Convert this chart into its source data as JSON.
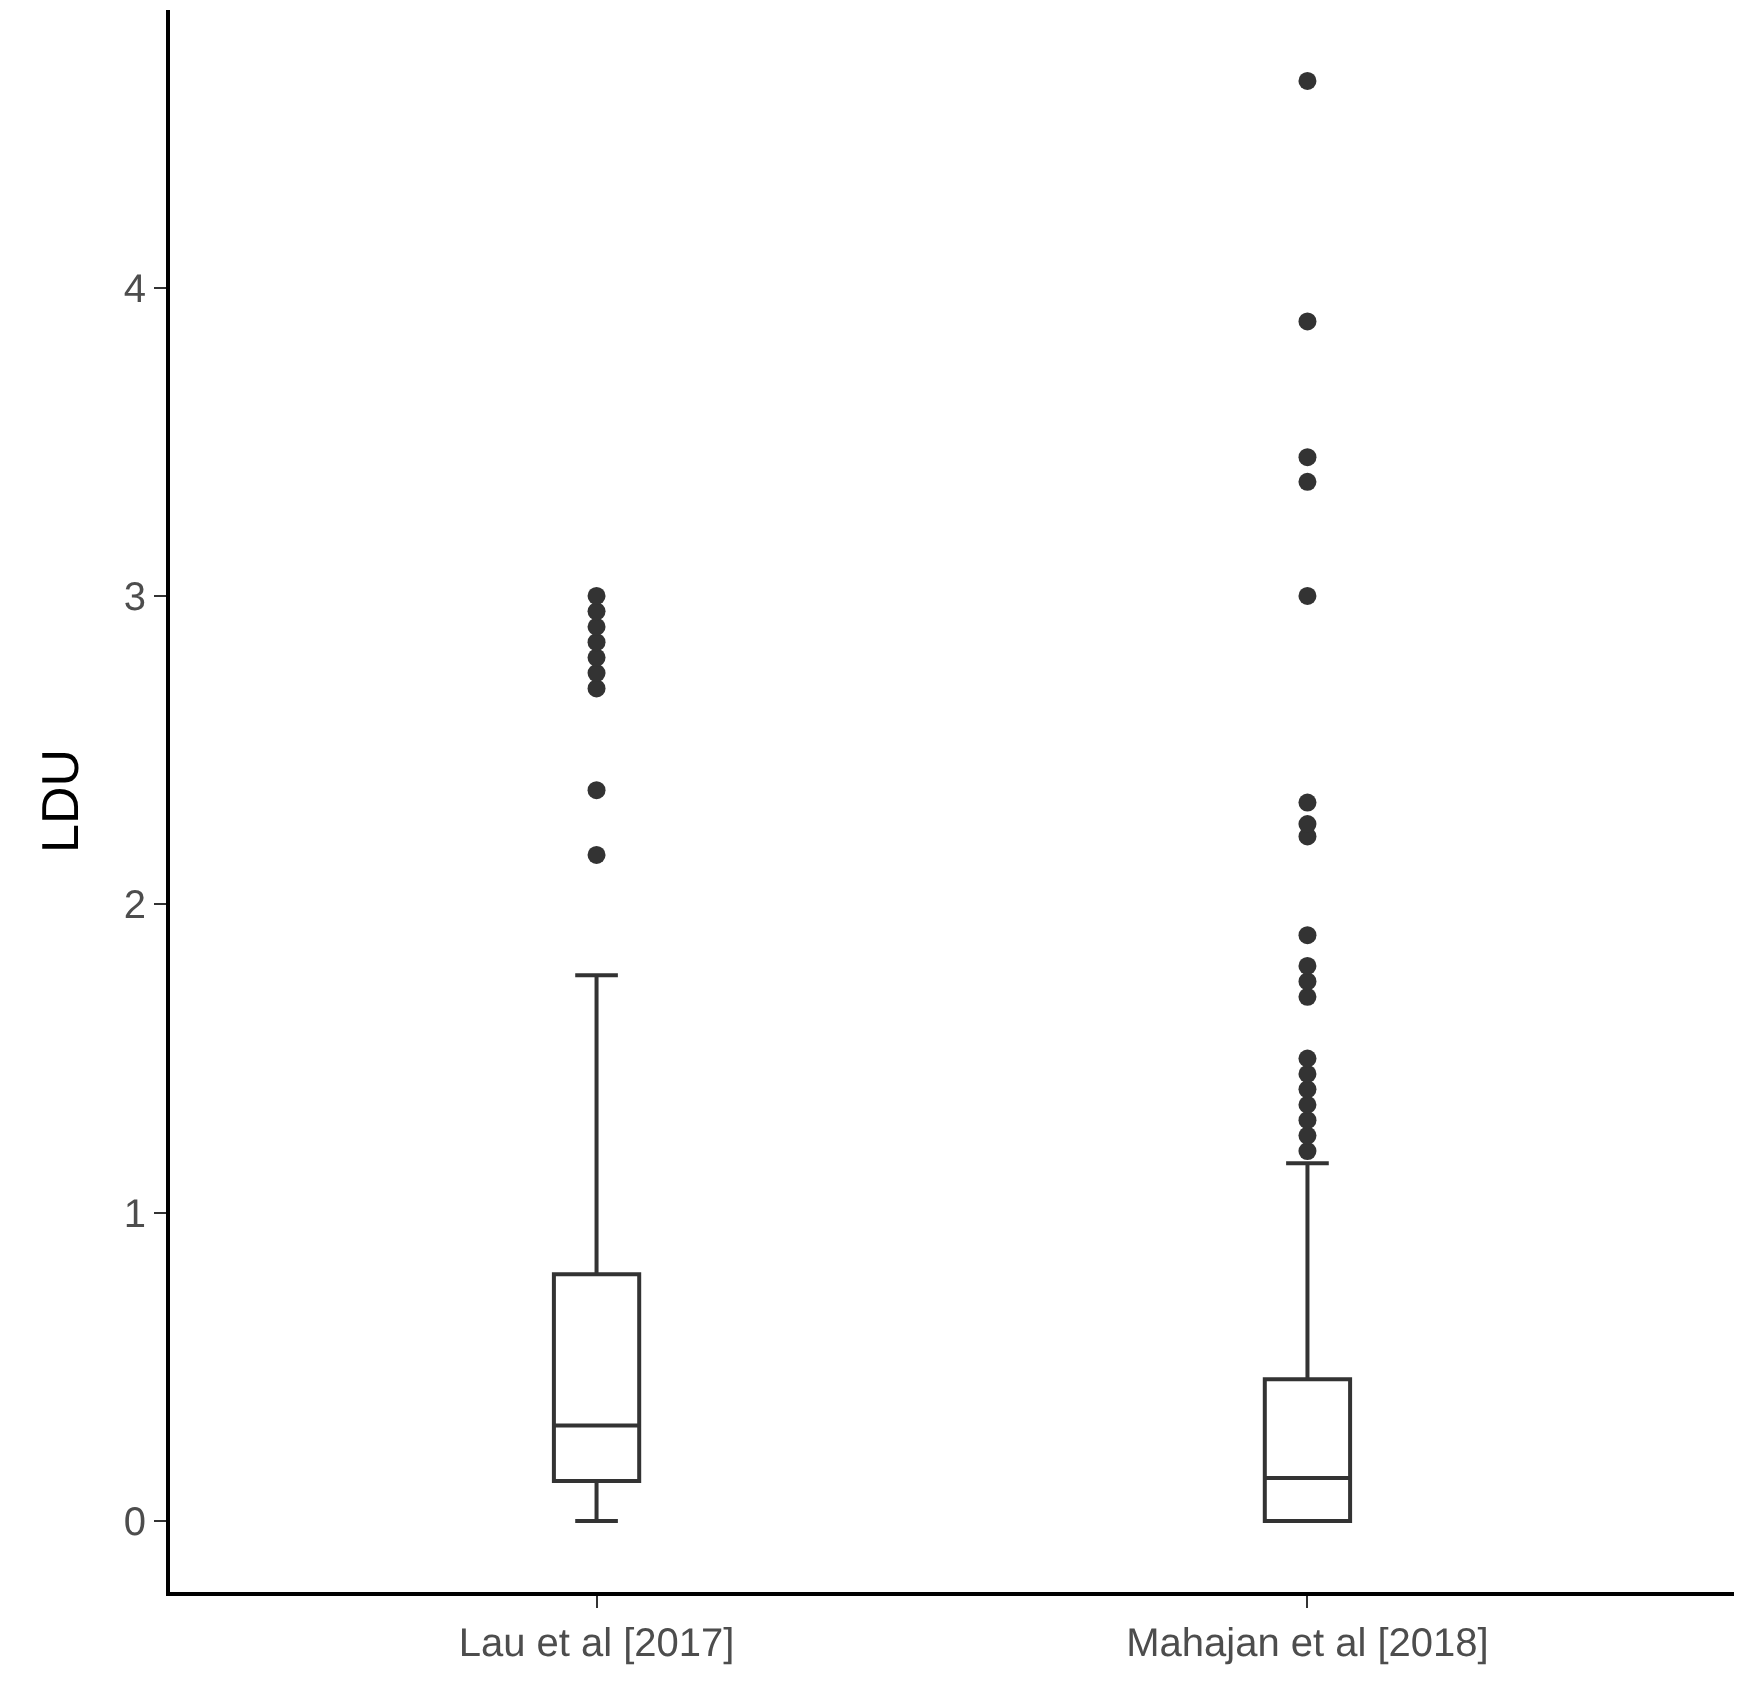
{
  "chart_data": {
    "type": "box",
    "ylabel": "LDU",
    "categories": [
      "Lau et al [2017]",
      "Mahajan et al [2018]"
    ],
    "boxes": [
      {
        "low": 0,
        "q1": 0.13,
        "median": 0.31,
        "q3": 0.8,
        "high": 1.77,
        "outliers": [
          2.16,
          2.37,
          2.7,
          2.75,
          2.8,
          2.85,
          2.9,
          2.95,
          3.0
        ]
      },
      {
        "low": 0,
        "q1": 0,
        "median": 0.14,
        "q3": 0.46,
        "high": 1.16,
        "outliers": [
          1.2,
          1.25,
          1.3,
          1.35,
          1.4,
          1.45,
          1.5,
          1.7,
          1.75,
          1.8,
          1.9,
          2.22,
          2.26,
          2.33,
          3.0,
          3.37,
          3.45,
          3.89,
          4.67
        ]
      }
    ],
    "color": "#333333",
    "ylim": [
      -0.23,
      4.9
    ],
    "yticks": [
      0,
      1,
      2,
      3,
      4
    ]
  }
}
